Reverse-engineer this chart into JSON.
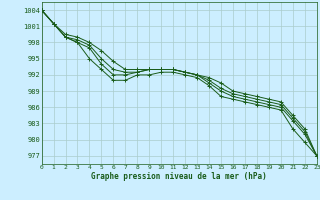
{
  "title": "Graphe pression niveau de la mer (hPa)",
  "background_color": "#cceeff",
  "grid_color": "#aacccc",
  "line_color": "#1a5c1a",
  "x_ticks": [
    0,
    1,
    2,
    3,
    4,
    5,
    6,
    7,
    8,
    9,
    10,
    11,
    12,
    13,
    14,
    15,
    16,
    17,
    18,
    19,
    20,
    21,
    22,
    23
  ],
  "y_ticks": [
    977,
    980,
    983,
    986,
    989,
    992,
    995,
    998,
    1001,
    1004
  ],
  "ylim": [
    975.5,
    1005.5
  ],
  "xlim": [
    0,
    23
  ],
  "series": [
    [
      1004,
      1001.5,
      999,
      998,
      995,
      993,
      991,
      991,
      992,
      992,
      992.5,
      992.5,
      992,
      991.5,
      990,
      988,
      987.5,
      987,
      986.5,
      986,
      985.5,
      982,
      979.5,
      977
    ],
    [
      1004,
      1001.5,
      999,
      998,
      997,
      994,
      992,
      992,
      992.5,
      993,
      993,
      993,
      992.5,
      992,
      990.5,
      989,
      988,
      987.5,
      987,
      986.5,
      986,
      983.5,
      981,
      977
    ],
    [
      1004,
      1001.5,
      999,
      998.5,
      997.5,
      995,
      993,
      992.5,
      992.5,
      993,
      993,
      993,
      992.5,
      992,
      991,
      989.5,
      988.5,
      988,
      987.5,
      987,
      986.5,
      984,
      981.5,
      977
    ],
    [
      1004,
      1001.5,
      999.5,
      999,
      998,
      996.5,
      994.5,
      993,
      993,
      993,
      993,
      993,
      992.5,
      992,
      991.5,
      990.5,
      989,
      988.5,
      988,
      987.5,
      987,
      984.5,
      982,
      977
    ]
  ]
}
